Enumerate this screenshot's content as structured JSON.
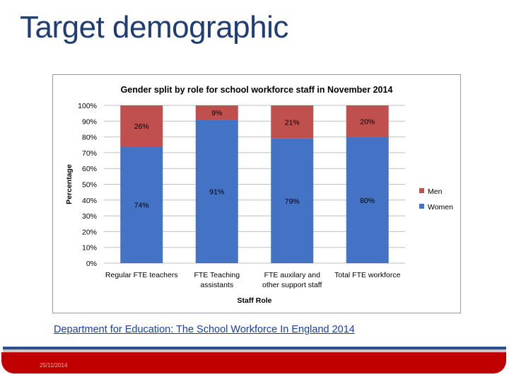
{
  "slide": {
    "title": "Target demographic",
    "source_link": "Department for Education: The School Workforce In England 2014 ",
    "date": "25/11/2014"
  },
  "colors": {
    "women": "#4472c4",
    "men": "#c0504d",
    "title": "#1f3c74",
    "footer_red": "#c00000",
    "footer_blue": "#2b4f8f"
  },
  "chart_data": {
    "type": "bar",
    "stacked": true,
    "title": "Gender split by role for school workforce staff in November 2014",
    "xlabel": "Staff Role",
    "ylabel": "Percentage",
    "ylim": [
      0,
      100
    ],
    "yticks": [
      "0%",
      "10%",
      "20%",
      "30%",
      "40%",
      "50%",
      "60%",
      "70%",
      "80%",
      "90%",
      "100%"
    ],
    "grid": true,
    "legend_position": "right",
    "categories": [
      [
        "Regular FTE teachers"
      ],
      [
        "FTE Teaching",
        "assistants"
      ],
      [
        "FTE auxilary and",
        "other support staff"
      ],
      [
        "Total FTE workforce"
      ]
    ],
    "series": [
      {
        "name": "Women",
        "values": [
          74,
          91,
          79,
          80
        ],
        "labels": [
          "74%",
          "91%",
          "79%",
          "80%"
        ]
      },
      {
        "name": "Men",
        "values": [
          26,
          9,
          21,
          20
        ],
        "labels": [
          "26%",
          "9%",
          "21%",
          "20%"
        ]
      }
    ],
    "legend_order": [
      "Men",
      "Women"
    ]
  }
}
